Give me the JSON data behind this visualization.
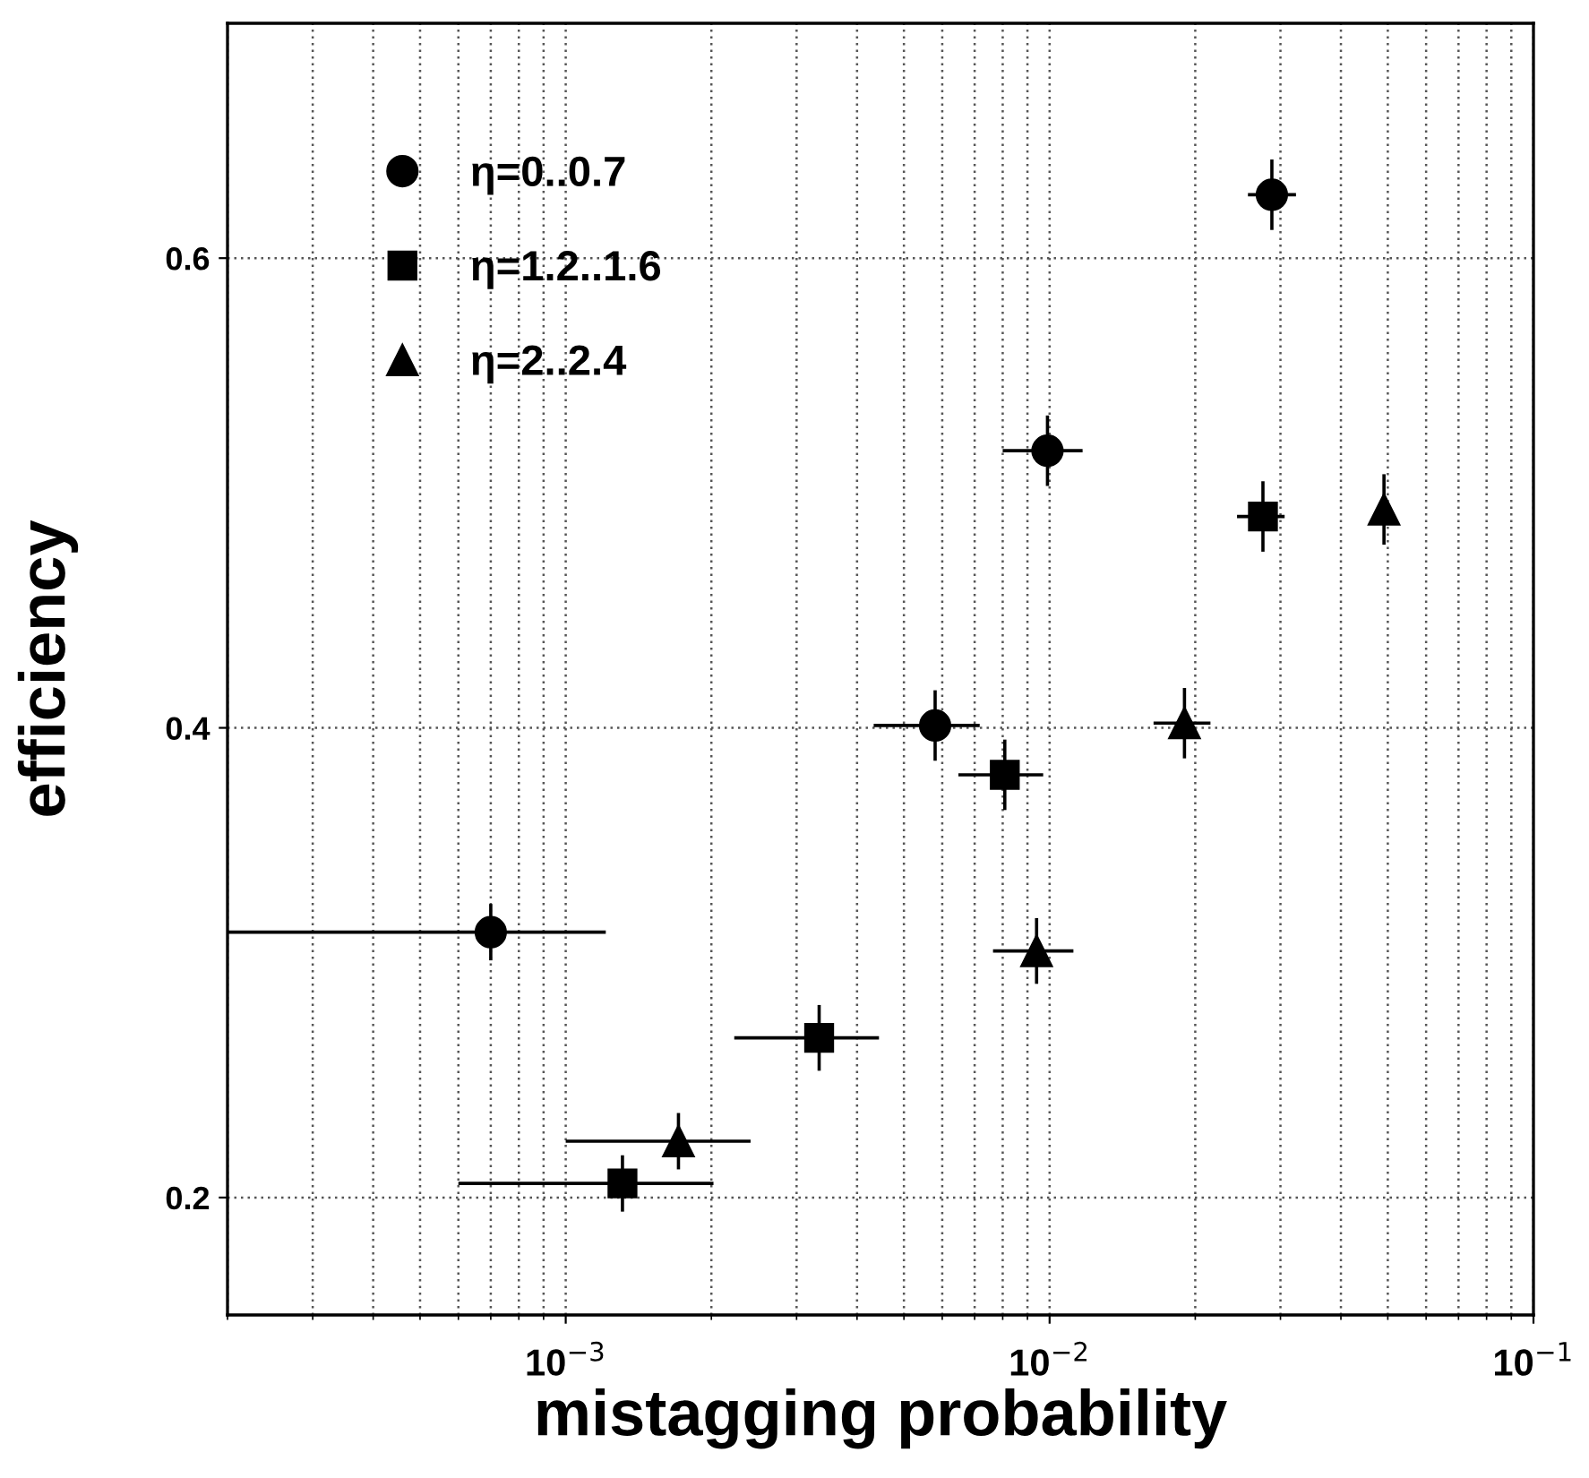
{
  "chart_data": {
    "type": "scatter",
    "xlabel": "mistagging probability",
    "ylabel": "efficiency",
    "log": "x",
    "xlim": [
      0.0002,
      0.1
    ],
    "ylim": [
      0.15,
      0.7
    ],
    "xticks": [
      {
        "value": 0.001,
        "label": "10$^{−3}$"
      },
      {
        "value": 0.01,
        "label": "10$^{−2}$"
      },
      {
        "value": 0.1,
        "label": "10$^{−1}$"
      }
    ],
    "yticks": [
      0.2,
      0.4,
      0.6
    ],
    "grid": true,
    "legend": "top left",
    "series": [
      {
        "name": "η=0..0.7",
        "color": "#000000",
        "marker": "circle",
        "x": [
          0.0007,
          0.0058,
          0.0099,
          0.0288
        ],
        "values": [
          0.313,
          0.401,
          0.518,
          0.627
        ],
        "errors": [
          0.012,
          0.015,
          0.015,
          0.015
        ],
        "xerrors": [
          [
            0.0002,
            0.00121
          ],
          [
            0.00433,
            0.00717
          ],
          [
            0.008,
            0.0117
          ],
          [
            0.0257,
            0.0323
          ]
        ]
      },
      {
        "name": "η=1.2..1.6",
        "color": "#000000",
        "marker": "square",
        "x": [
          0.00131,
          0.00334,
          0.00808,
          0.0276
        ],
        "values": [
          0.206,
          0.268,
          0.38,
          0.49
        ],
        "errors": [
          0.012,
          0.014,
          0.015,
          0.015
        ],
        "xerrors": [
          [
            0.0006,
            0.00202
          ],
          [
            0.00223,
            0.00444
          ],
          [
            0.00648,
            0.0097
          ],
          [
            0.0244,
            0.0306
          ]
        ]
      },
      {
        "name": "η=2..2.4",
        "color": "#000000",
        "marker": "triangle",
        "x": [
          0.00171,
          0.0094,
          0.019,
          0.0491
        ],
        "values": [
          0.224,
          0.305,
          0.402,
          0.493
        ],
        "errors": [
          0.012,
          0.014,
          0.015,
          0.015
        ],
        "xerrors": [
          [
            0.001,
            0.00241
          ],
          [
            0.00764,
            0.0112
          ],
          [
            0.0164,
            0.0215
          ],
          null
        ]
      }
    ]
  }
}
